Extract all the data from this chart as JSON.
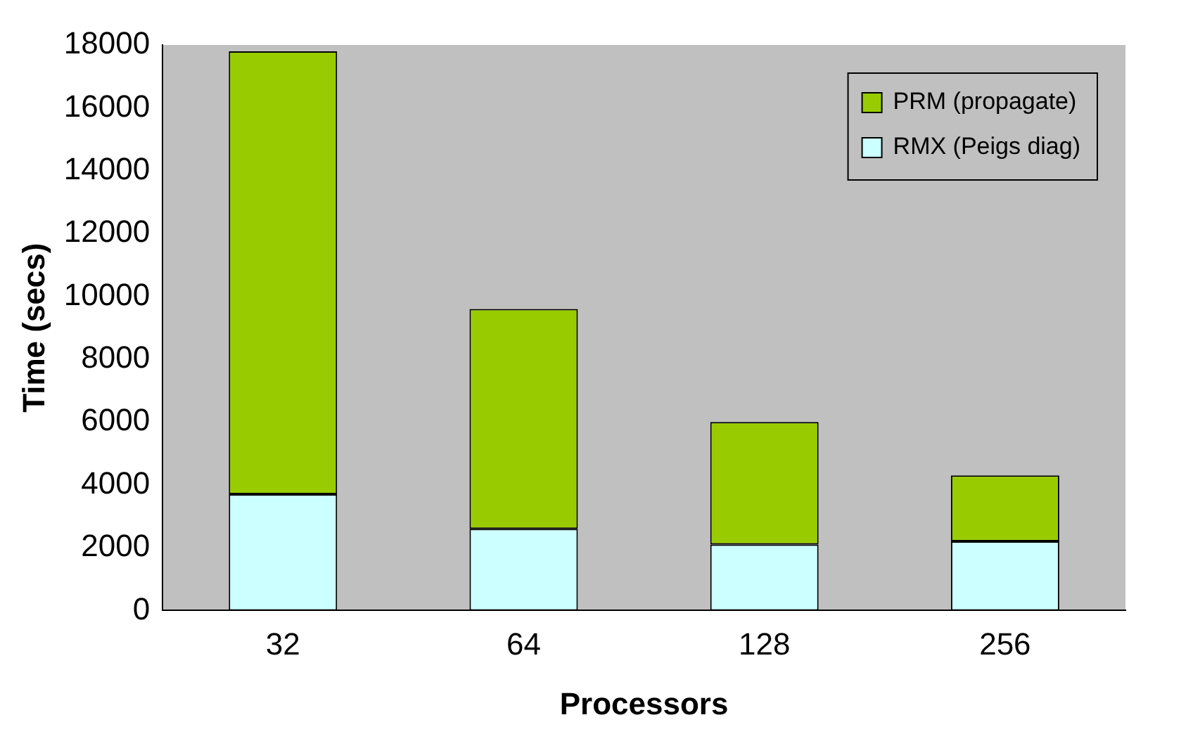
{
  "chart_data": {
    "type": "bar",
    "stacked": true,
    "xlabel": "Processors",
    "ylabel": "Time (secs)",
    "categories": [
      "32",
      "64",
      "128",
      "256"
    ],
    "series": [
      {
        "name": "RMX (Peigs diag)",
        "color": "#ccffff",
        "values": [
          3700,
          2600,
          2100,
          2200
        ]
      },
      {
        "name": "PRM (propagate)",
        "color": "#99cc00",
        "values": [
          14100,
          7000,
          3900,
          2100
        ]
      }
    ],
    "ylim": [
      0,
      18000
    ],
    "yticks": [
      0,
      2000,
      4000,
      6000,
      8000,
      10000,
      12000,
      14000,
      16000,
      18000
    ],
    "grid": false,
    "legend": "top right"
  }
}
